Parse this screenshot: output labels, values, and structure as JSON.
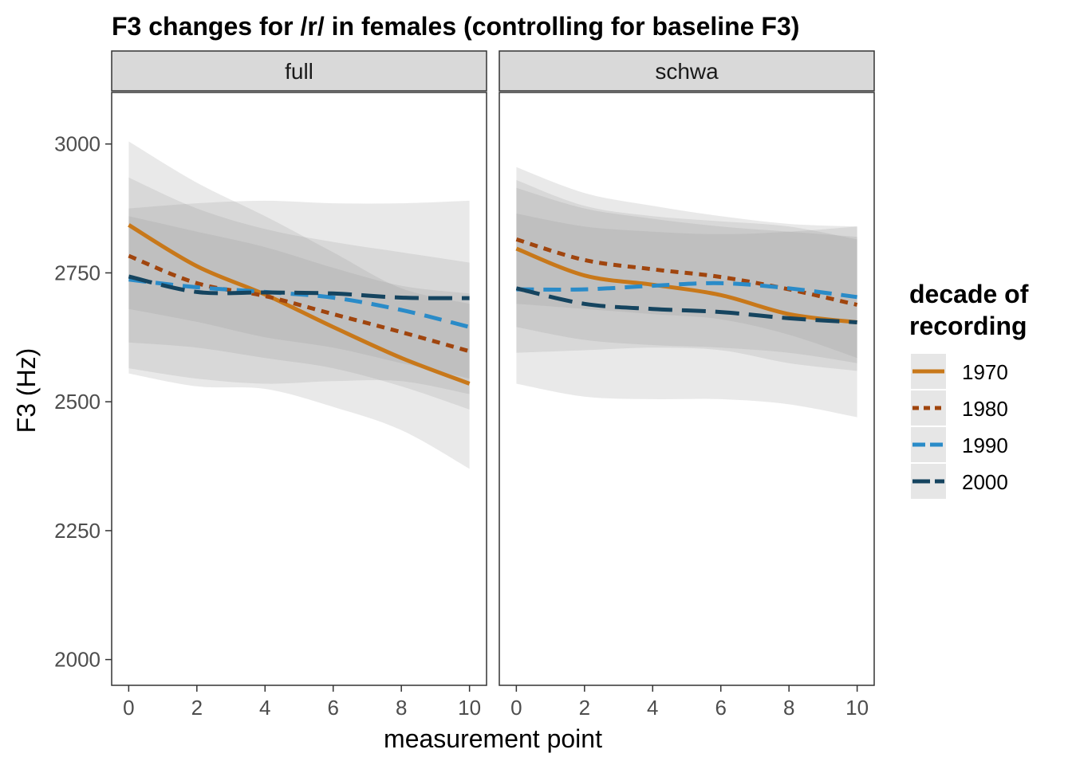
{
  "chart_data": {
    "type": "line",
    "title": "F3 changes for /r/ in females (controlling for baseline F3)",
    "xlabel": "measurement point",
    "ylabel": "F3 (Hz)",
    "xlim": [
      -0.5,
      10.5
    ],
    "ylim": [
      1950,
      3100
    ],
    "x_ticks": [
      0,
      2,
      4,
      6,
      8,
      10
    ],
    "y_ticks": [
      2000,
      2250,
      2500,
      2750,
      3000
    ],
    "legend": {
      "title_lines": [
        "decade of",
        "recording"
      ],
      "placement": "right",
      "entries": [
        "1970",
        "1980",
        "1990",
        "2000"
      ]
    },
    "series_styles": [
      {
        "name": "1970",
        "color": "#C8781A",
        "dash": "solid"
      },
      {
        "name": "1980",
        "color": "#A0450E",
        "dash": "dotted"
      },
      {
        "name": "1990",
        "color": "#2A8BC8",
        "dash": "dashed"
      },
      {
        "name": "2000",
        "color": "#15445F",
        "dash": "longdash"
      }
    ],
    "x": [
      0,
      2,
      4,
      6,
      8,
      10
    ],
    "panels": [
      {
        "label": "full",
        "series": [
          {
            "name": "1970",
            "values": [
              2843,
              2763,
              2708,
              2645,
              2585,
              2535
            ],
            "lower": [
              2555,
              2530,
              2525,
              2490,
              2445,
              2370
            ],
            "upper": [
              3005,
              2925,
              2860,
              2790,
              2720,
              2690
            ]
          },
          {
            "name": "1980",
            "values": [
              2783,
              2730,
              2705,
              2670,
              2635,
              2598
            ],
            "lower": [
              2615,
              2605,
              2585,
              2565,
              2530,
              2485
            ],
            "upper": [
              2935,
              2875,
              2835,
              2810,
              2790,
              2770
            ]
          },
          {
            "name": "1990",
            "values": [
              2737,
              2722,
              2713,
              2702,
              2678,
              2645
            ],
            "lower": [
              2680,
              2655,
              2625,
              2605,
              2575,
              2545
            ],
            "upper": [
              2860,
              2830,
              2800,
              2760,
              2725,
              2710
            ]
          },
          {
            "name": "2000",
            "values": [
              2743,
              2713,
              2712,
              2710,
              2702,
              2701
            ],
            "lower": [
              2565,
              2545,
              2535,
              2540,
              2540,
              2515
            ],
            "upper": [
              2875,
              2885,
              2890,
              2885,
              2885,
              2890
            ]
          }
        ]
      },
      {
        "label": "schwa",
        "series": [
          {
            "name": "1970",
            "values": [
              2797,
              2745,
              2727,
              2707,
              2670,
              2654
            ],
            "lower": [
              2645,
              2620,
              2610,
              2605,
              2595,
              2575
            ],
            "upper": [
              2930,
              2880,
              2860,
              2850,
              2840,
              2815
            ]
          },
          {
            "name": "1980",
            "values": [
              2815,
              2775,
              2757,
              2742,
              2718,
              2688
            ],
            "lower": [
              2690,
              2680,
              2670,
              2660,
              2630,
              2585
            ],
            "upper": [
              2915,
              2875,
              2855,
              2840,
              2830,
              2820
            ]
          },
          {
            "name": "1990",
            "values": [
              2718,
              2718,
              2725,
              2730,
              2720,
              2703
            ],
            "lower": [
              2595,
              2600,
              2605,
              2600,
              2575,
              2560
            ],
            "upper": [
              2865,
              2840,
              2830,
              2825,
              2830,
              2840
            ]
          },
          {
            "name": "2000",
            "values": [
              2720,
              2690,
              2680,
              2674,
              2662,
              2654
            ],
            "lower": [
              2535,
              2510,
              2505,
              2505,
              2495,
              2470
            ],
            "upper": [
              2955,
              2905,
              2880,
              2860,
              2845,
              2840
            ]
          }
        ]
      }
    ]
  }
}
